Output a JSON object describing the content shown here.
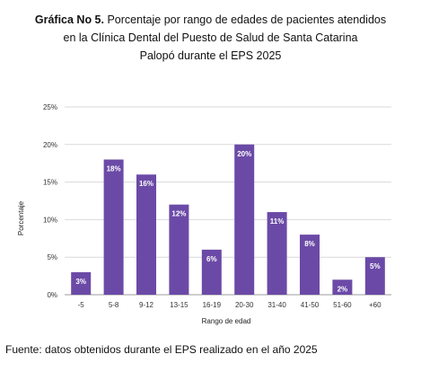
{
  "title": {
    "bold": "Gráfica No 5.",
    "line1": " Porcentaje por rango de edades de pacientes atendidos",
    "line2": "en la Clínica Dental del Puesto de Salud de Santa Catarina",
    "line3": "Palopó durante el EPS 2025"
  },
  "source": "Fuente: datos obtenidos durante el EPS realizado en el año 2025",
  "chart_data": {
    "type": "bar",
    "categories": [
      "-5",
      "5-8",
      "9-12",
      "13-15",
      "16-19",
      "20-30",
      "31-40",
      "41-50",
      "51-60",
      "+60"
    ],
    "values": [
      3,
      18,
      16,
      12,
      6,
      20,
      11,
      8,
      2,
      5
    ],
    "data_labels": [
      "3%",
      "18%",
      "16%",
      "12%",
      "6%",
      "20%",
      "11%",
      "8%",
      "2%",
      "5%"
    ],
    "xlabel": "Rango de edad",
    "ylabel": "Porcentaje",
    "ylim": [
      0,
      25
    ],
    "yticks": [
      "0%",
      "5%",
      "10%",
      "15%",
      "20%",
      "25%"
    ],
    "grid": true,
    "colors": {
      "bar": "#6b4aa7",
      "grid": "#d9d9d9"
    }
  }
}
